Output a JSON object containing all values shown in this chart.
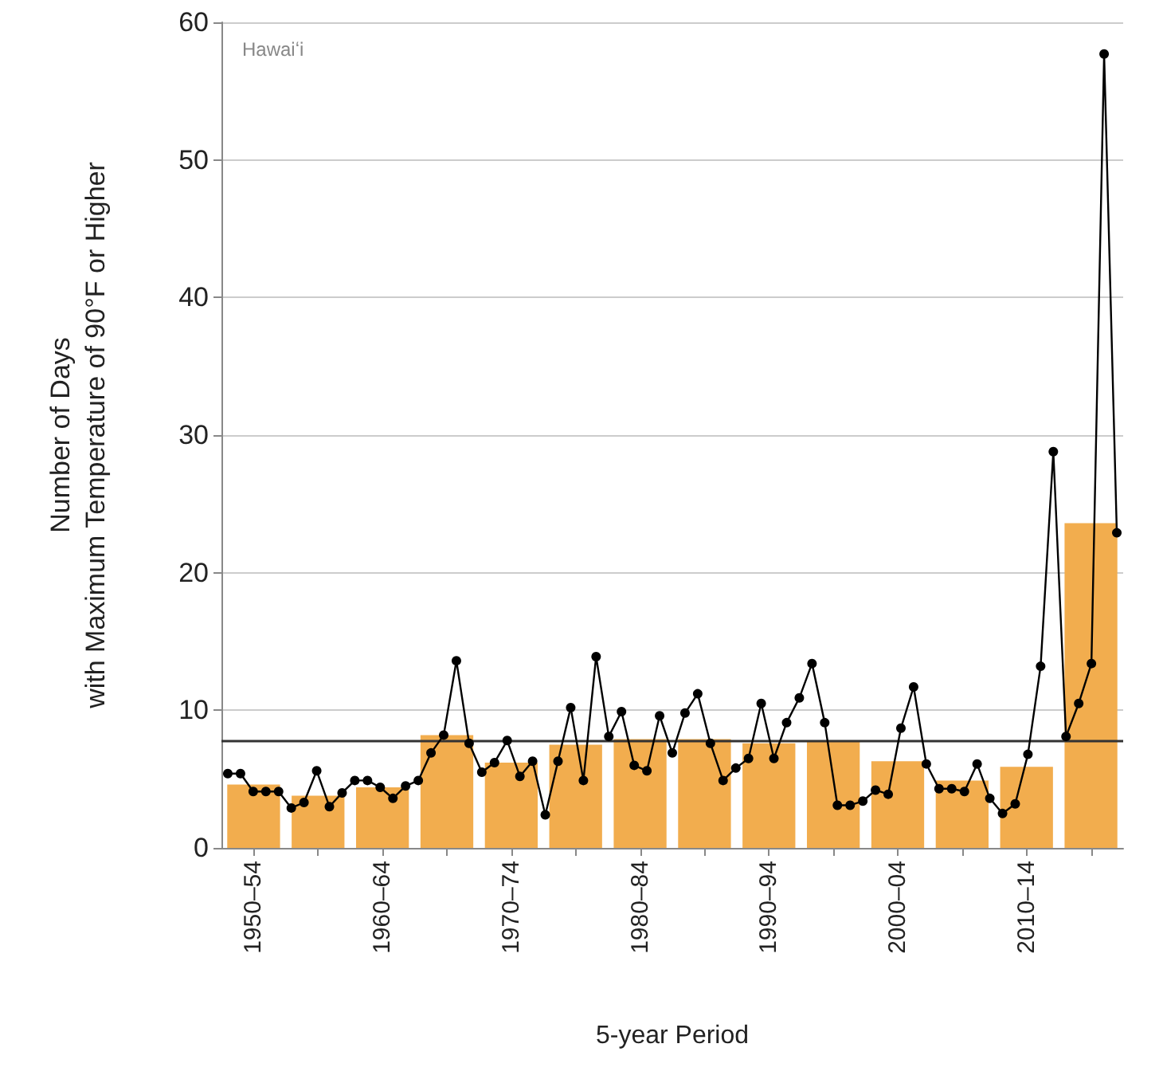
{
  "chart_data": [
    {
      "type": "bar",
      "title": "Hawaiʻi",
      "xlabel": "5-year Period",
      "ylabel": "Number of Days\nwith Maximum Temperature of 90°F or Higher",
      "categories": [
        "1950–54",
        null,
        "1960–64",
        null,
        "1970–74",
        null,
        "1980–84",
        null,
        "1990–94",
        null,
        "2000–04",
        null,
        "2010–14",
        null
      ],
      "color": "#f2ad4e",
      "values": [
        4.6,
        3.8,
        4.4,
        8.2,
        6.2,
        7.5,
        7.9,
        7.9,
        7.6,
        7.8,
        6.3,
        4.9,
        5.9,
        23.6
      ],
      "ylim": [
        0,
        60
      ],
      "yticks": [
        0,
        10,
        20,
        30,
        40,
        50,
        60
      ],
      "grid": "y",
      "ref_lines": [
        {
          "axis": "y",
          "value": 7.8,
          "color": "#333333"
        }
      ]
    },
    {
      "type": "line",
      "color": "#000000",
      "marker": "circle",
      "tick_labels": false,
      "ylim": [
        0,
        60
      ],
      "yticks": [
        0,
        10,
        20,
        30,
        40,
        50,
        60
      ],
      "categories": [
        null,
        null,
        null,
        null,
        null,
        null,
        null,
        null,
        null,
        null,
        null,
        null,
        null,
        null,
        null,
        null,
        null,
        null,
        null,
        null,
        null,
        null,
        null,
        null,
        null,
        null,
        null,
        null,
        null,
        null,
        null,
        null,
        null,
        null,
        null,
        null,
        null,
        null,
        null,
        null,
        null,
        null,
        null,
        null,
        null,
        null,
        null,
        null,
        null,
        null,
        null,
        null,
        null,
        null,
        null,
        null,
        null,
        null,
        null,
        null,
        null,
        null,
        null,
        null,
        null,
        null,
        null,
        null,
        null,
        null,
        null
      ],
      "values": [
        5.4,
        5.4,
        4.1,
        4.1,
        4.1,
        2.9,
        3.3,
        5.6,
        3.0,
        4.0,
        4.9,
        4.9,
        4.4,
        3.6,
        4.5,
        4.9,
        6.9,
        8.2,
        13.6,
        7.6,
        5.5,
        6.2,
        7.8,
        5.2,
        6.3,
        2.4,
        6.3,
        10.2,
        4.9,
        13.9,
        8.1,
        9.9,
        6.0,
        5.6,
        9.6,
        6.9,
        9.8,
        11.2,
        7.6,
        4.9,
        5.8,
        6.5,
        10.5,
        6.5,
        9.1,
        10.9,
        13.4,
        9.1,
        3.1,
        3.1,
        3.4,
        4.2,
        3.9,
        8.7,
        11.7,
        6.1,
        4.3,
        4.3,
        4.1,
        6.1,
        3.6,
        2.5,
        3.2,
        6.8,
        13.2,
        28.8,
        8.1,
        10.5,
        13.4,
        57.7,
        22.9
      ]
    }
  ]
}
